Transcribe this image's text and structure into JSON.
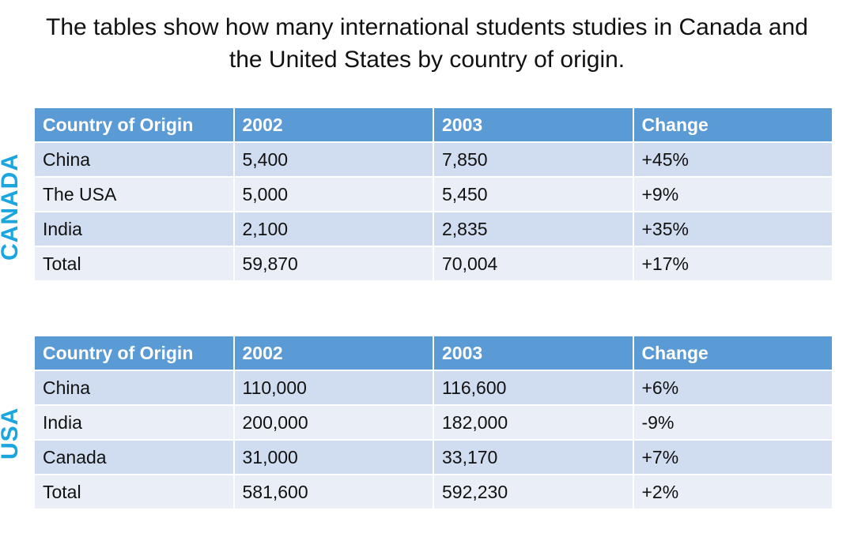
{
  "title_line1": "The tables show how many international students studies in Canada and",
  "title_line2": "the United States by country of origin.",
  "chart_data": [
    {
      "type": "table",
      "side_label": "CANADA",
      "columns": [
        "Country of Origin",
        "2002",
        "2003",
        "Change"
      ],
      "rows": [
        [
          "China",
          "5,400",
          "7,850",
          "+45%"
        ],
        [
          "The USA",
          "5,000",
          "5,450",
          "+9%"
        ],
        [
          "India",
          "2,100",
          "2,835",
          "+35%"
        ],
        [
          "Total",
          "59,870",
          "70,004",
          "+17%"
        ]
      ]
    },
    {
      "type": "table",
      "side_label": "USA",
      "columns": [
        "Country of Origin",
        "2002",
        "2003",
        "Change"
      ],
      "rows": [
        [
          "China",
          "110,000",
          "116,600",
          "+6%"
        ],
        [
          "India",
          "200,000",
          "182,000",
          "-9%"
        ],
        [
          "Canada",
          "31,000",
          "33,170",
          "+7%"
        ],
        [
          "Total",
          "581,600",
          "592,230",
          "+2%"
        ]
      ]
    }
  ],
  "colors": {
    "header": "#5b9bd5",
    "row_dark": "#d0dcef",
    "row_light": "#e9eef7",
    "side_label": "#1ba6df"
  }
}
